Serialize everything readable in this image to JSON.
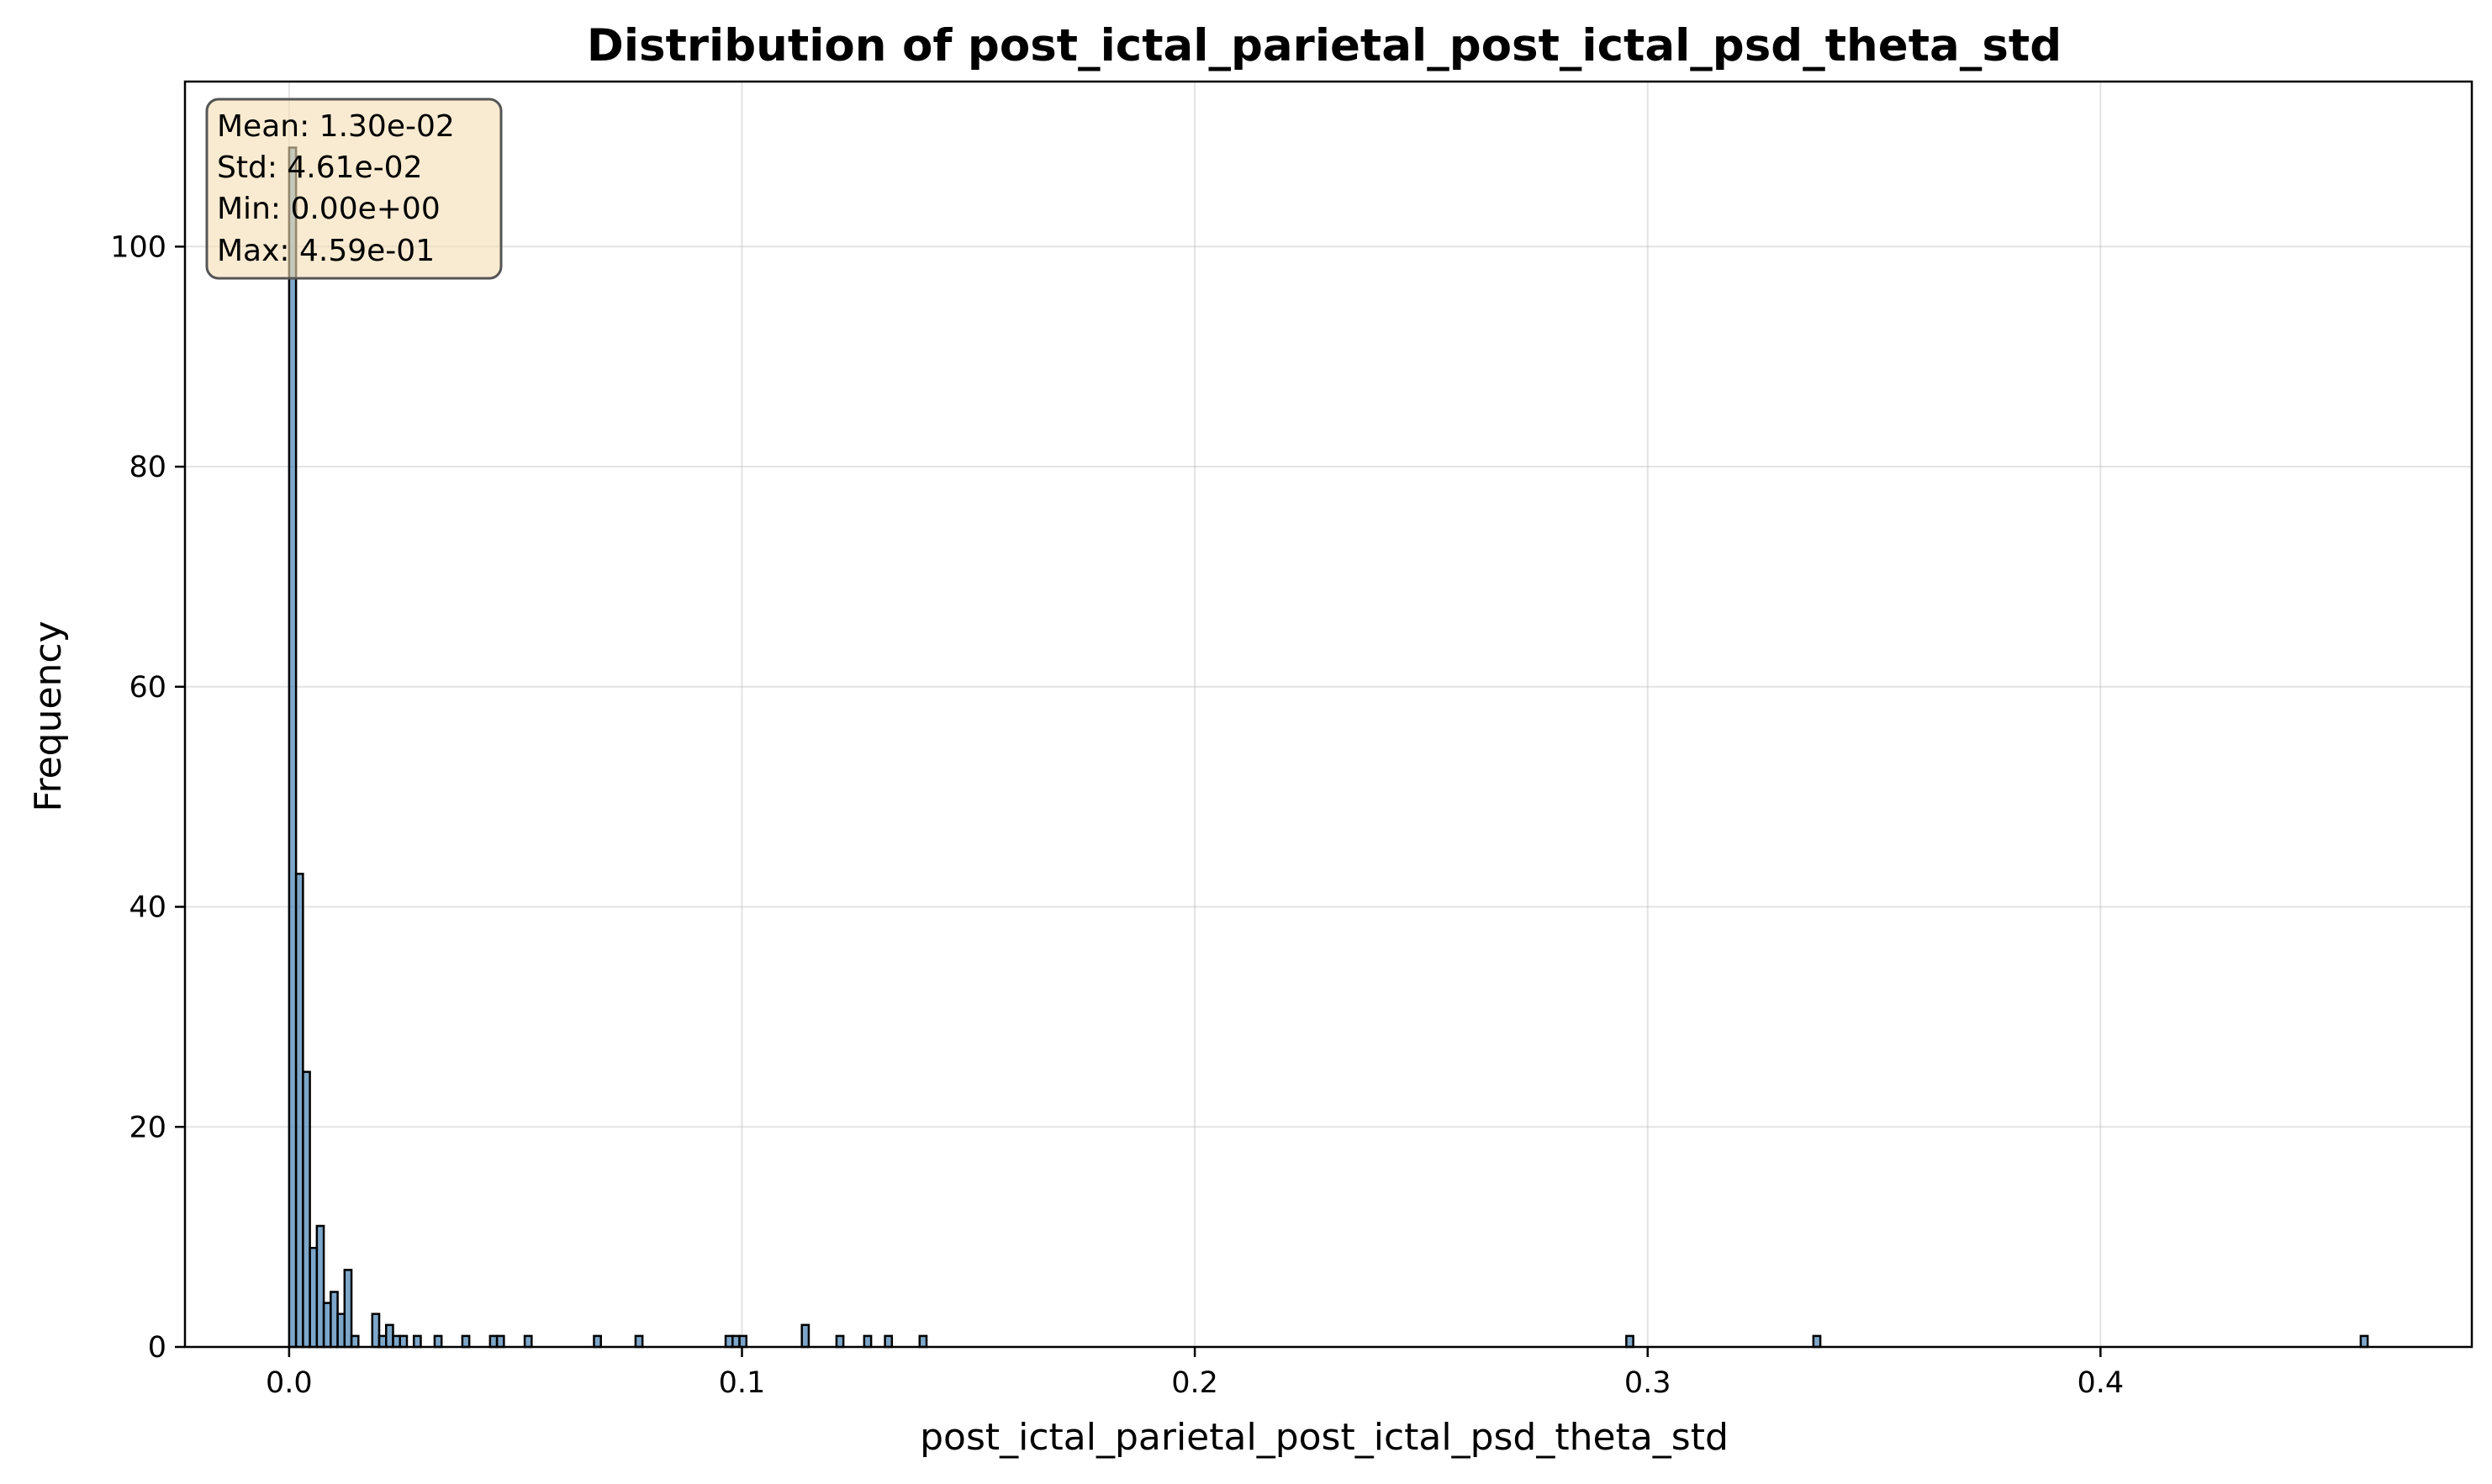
{
  "chart_data": {
    "type": "bar",
    "title": "Distribution of post_ictal_parietal_post_ictal_psd_theta_std",
    "xlabel": "post_ictal_parietal_post_ictal_psd_theta_std",
    "ylabel": "Frequency",
    "xlim": [
      -0.023,
      0.482
    ],
    "ylim": [
      0,
      115
    ],
    "xticks": [
      0.0,
      0.1,
      0.2,
      0.3,
      0.4
    ],
    "xtick_labels": [
      "0.0",
      "0.1",
      "0.2",
      "0.3",
      "0.4"
    ],
    "yticks": [
      0,
      20,
      40,
      60,
      80,
      100
    ],
    "ytick_labels": [
      "0",
      "20",
      "40",
      "60",
      "80",
      "100"
    ],
    "grid": true,
    "bin_width": 0.00153,
    "bar_color": "#4682b4",
    "edge_color": "#000000",
    "bins": [
      {
        "x": 0.0,
        "count": 109
      },
      {
        "x": 0.00153,
        "count": 43
      },
      {
        "x": 0.00306,
        "count": 25
      },
      {
        "x": 0.00459,
        "count": 9
      },
      {
        "x": 0.00612,
        "count": 11
      },
      {
        "x": 0.00765,
        "count": 4
      },
      {
        "x": 0.00918,
        "count": 5
      },
      {
        "x": 0.01071,
        "count": 3
      },
      {
        "x": 0.01224,
        "count": 7
      },
      {
        "x": 0.01377,
        "count": 1
      },
      {
        "x": 0.01836,
        "count": 3
      },
      {
        "x": 0.01989,
        "count": 1
      },
      {
        "x": 0.02142,
        "count": 2
      },
      {
        "x": 0.02295,
        "count": 1
      },
      {
        "x": 0.02448,
        "count": 1
      },
      {
        "x": 0.02754,
        "count": 1
      },
      {
        "x": 0.03213,
        "count": 1
      },
      {
        "x": 0.03825,
        "count": 1
      },
      {
        "x": 0.04437,
        "count": 1
      },
      {
        "x": 0.0459,
        "count": 1
      },
      {
        "x": 0.05202,
        "count": 1
      },
      {
        "x": 0.06732,
        "count": 1
      },
      {
        "x": 0.0765,
        "count": 1
      },
      {
        "x": 0.09639,
        "count": 1
      },
      {
        "x": 0.09792,
        "count": 1
      },
      {
        "x": 0.09945,
        "count": 1
      },
      {
        "x": 0.11322,
        "count": 2
      },
      {
        "x": 0.12087,
        "count": 1
      },
      {
        "x": 0.12699,
        "count": 1
      },
      {
        "x": 0.13158,
        "count": 1
      },
      {
        "x": 0.13923,
        "count": 1
      },
      {
        "x": 0.29529,
        "count": 1
      },
      {
        "x": 0.3366,
        "count": 1
      },
      {
        "x": 0.45747,
        "count": 1
      }
    ],
    "annotation": {
      "lines": [
        "Mean: 1.30e-02",
        "Std: 4.61e-02",
        "Min: 0.00e+00",
        "Max: 4.59e-01"
      ],
      "placement": "top-left",
      "box_fill": "#f5deb3",
      "box_stroke": "#555555"
    }
  }
}
